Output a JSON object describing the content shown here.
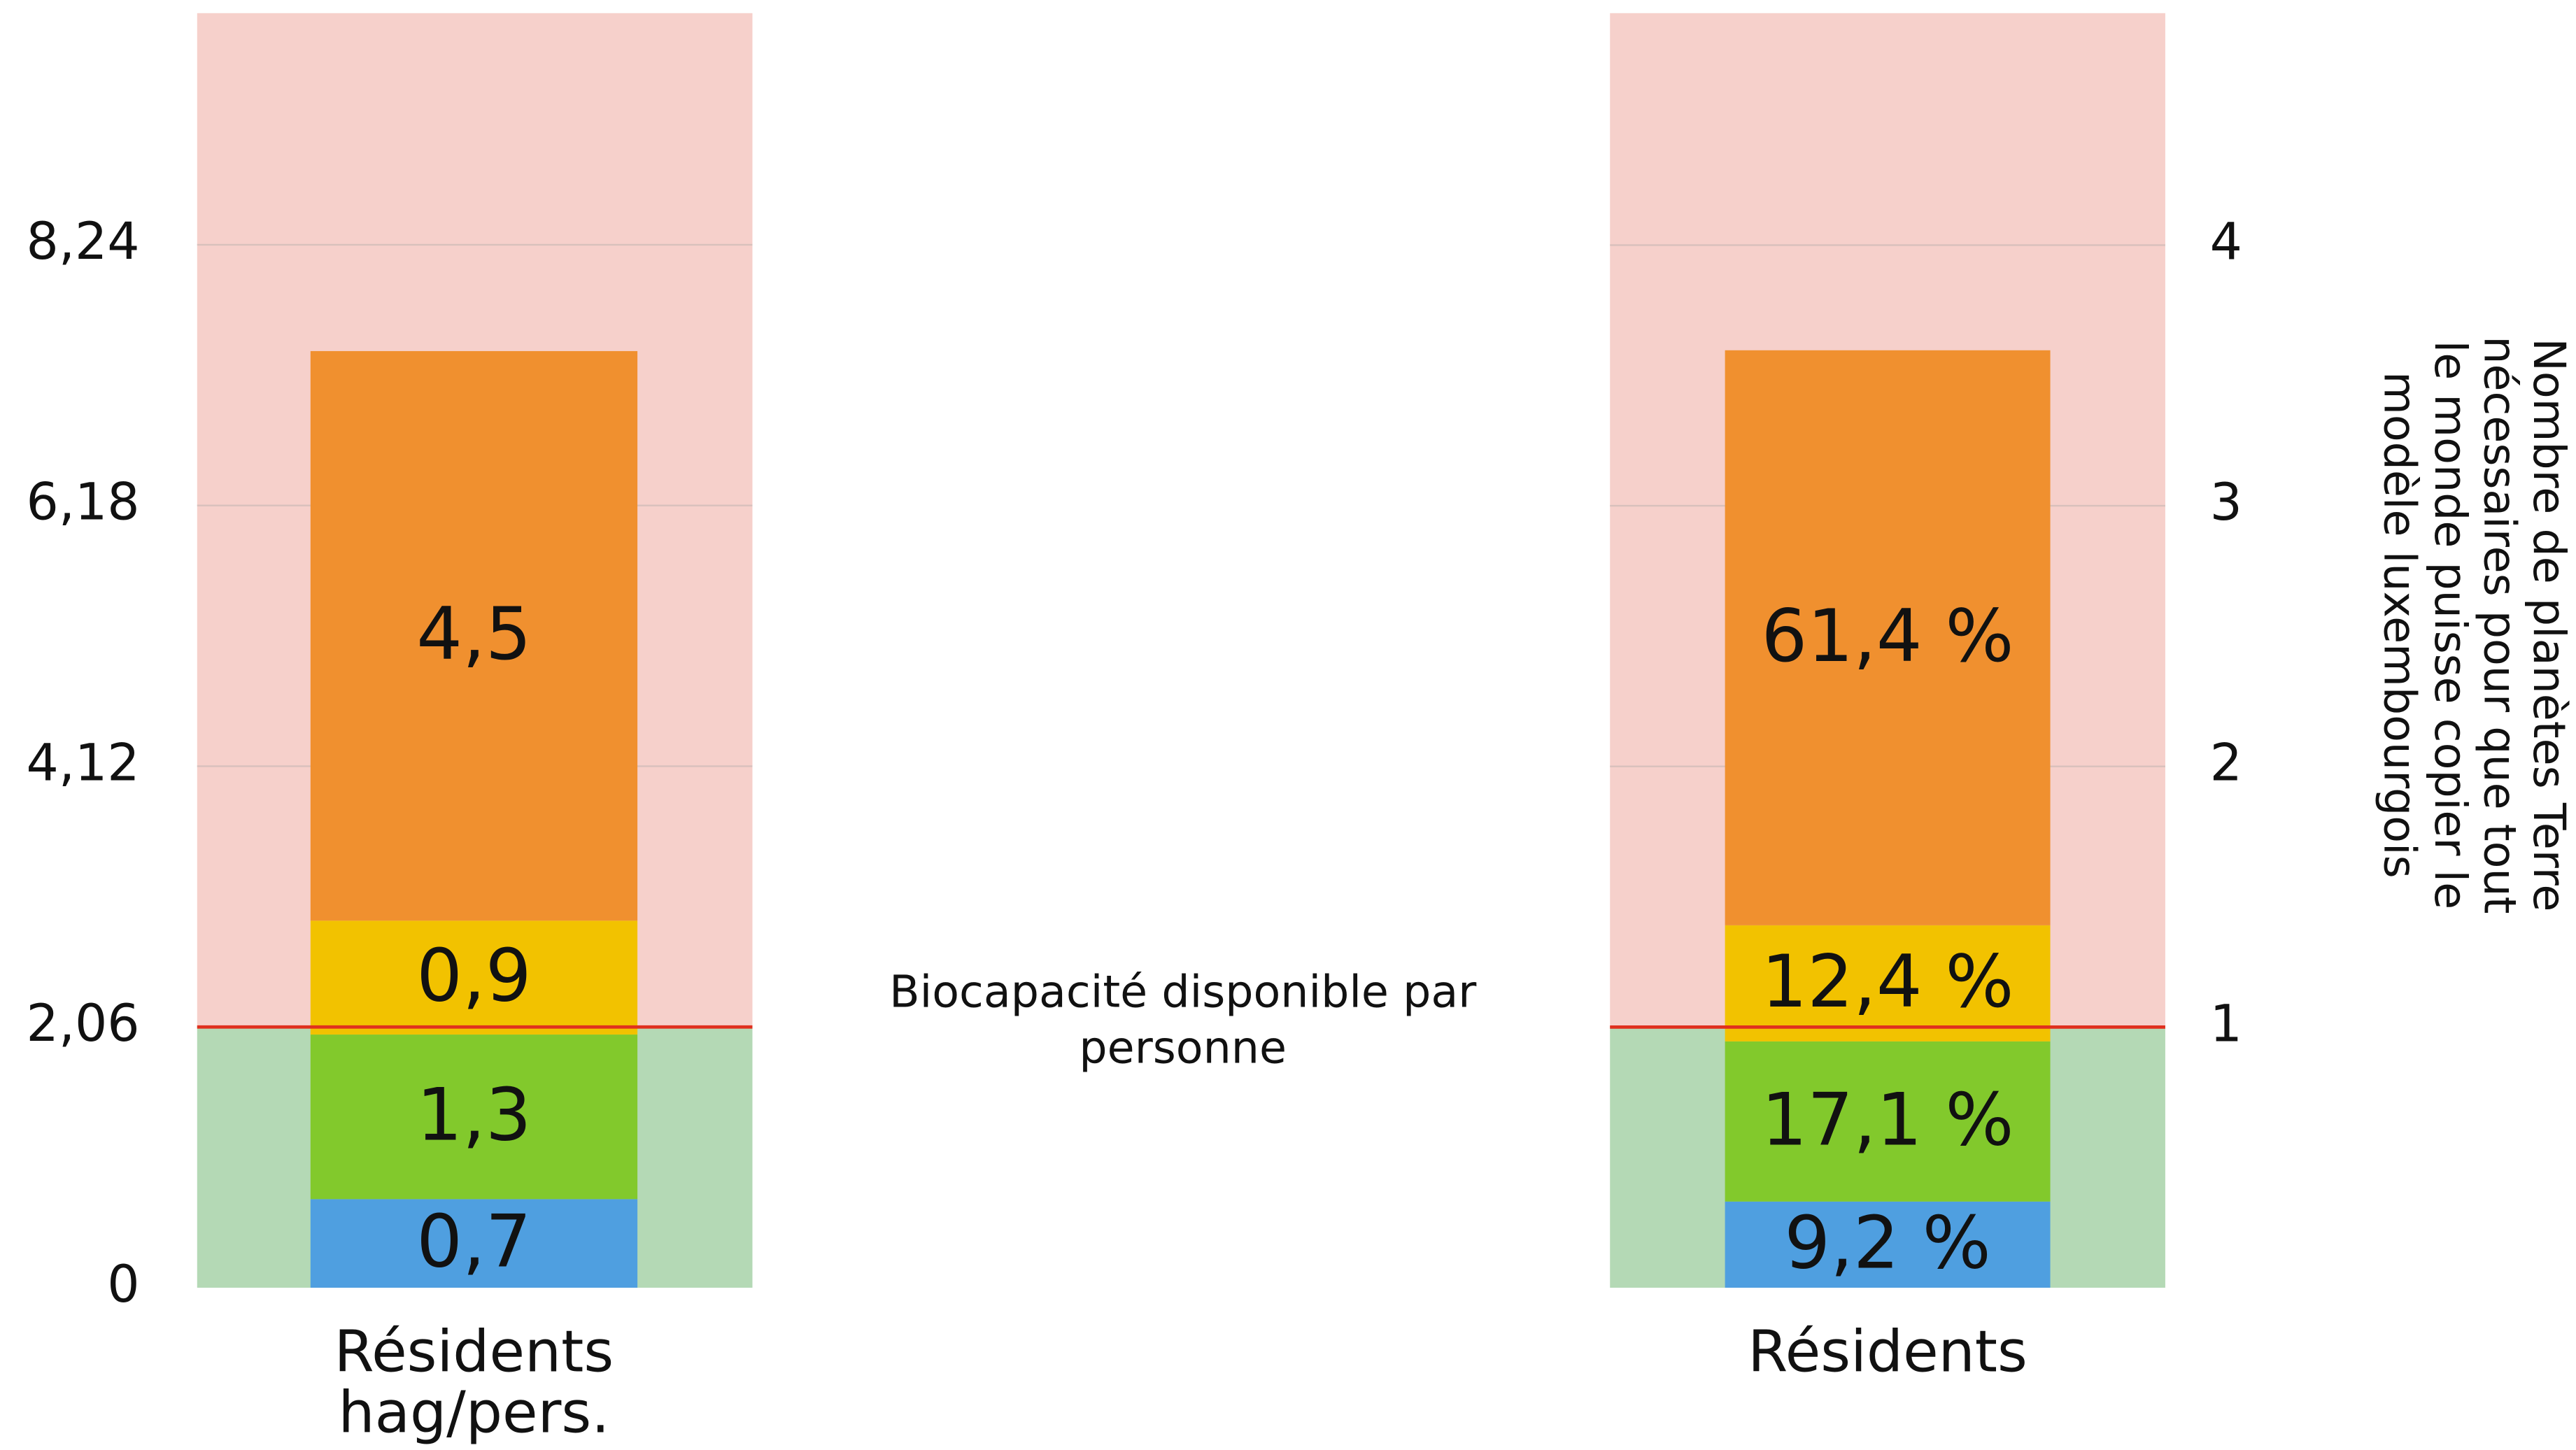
{
  "chart_data": [
    {
      "type": "bar",
      "stacked": true,
      "categories": [
        "Résidents hag/pers."
      ],
      "series": [
        {
          "color": "#4f9fe0",
          "values": [
            0.7
          ],
          "value_labels": [
            "0,7"
          ]
        },
        {
          "color": "#82c92c",
          "values": [
            1.3
          ],
          "value_labels": [
            "1,3"
          ]
        },
        {
          "color": "#f2c200",
          "values": [
            0.9
          ],
          "value_labels": [
            "0,9"
          ]
        },
        {
          "color": "#f0902f",
          "values": [
            4.5
          ],
          "value_labels": [
            "4,5"
          ]
        }
      ],
      "ylim": [
        0,
        10.07
      ],
      "yticks": [
        0,
        {
          "value": 2.06,
          "label": "2,06"
        },
        {
          "value": 4.12,
          "label": "4,12"
        },
        {
          "value": 6.18,
          "label": "6,18"
        },
        {
          "value": 8.24,
          "label": "8,24"
        }
      ],
      "grid": true,
      "threshold": 2.06,
      "threshold_color": "#e0301e",
      "above_color": "#f6d0cb",
      "below_color": "#b4d9b5"
    },
    {
      "type": "bar",
      "stacked": true,
      "categories": [
        "Résidents"
      ],
      "series": [
        {
          "color": "#4f9fe0",
          "values": [
            9.2
          ],
          "value_labels": [
            "9,2 %"
          ]
        },
        {
          "color": "#82c92c",
          "values": [
            17.1
          ],
          "value_labels": [
            "17,1 %"
          ]
        },
        {
          "color": "#f2c200",
          "values": [
            12.4
          ],
          "value_labels": [
            "12,4 %"
          ]
        },
        {
          "color": "#f0902f",
          "values": [
            61.4
          ],
          "value_labels": [
            "61,4 %"
          ]
        }
      ],
      "ylim": [
        0,
        136.1
      ],
      "y2lim": [
        0,
        4.89
      ],
      "y2ticks": [
        1,
        2,
        3,
        4
      ],
      "y2label": "Nombre de planètes Terre nécessaires pour que tout le monde puisse copier le modèle luxembourgois",
      "grid": true,
      "threshold": 1,
      "threshold_axis": "y2",
      "threshold_color": "#e0301e",
      "above_color": "#f6d0cb",
      "below_color": "#b4d9b5"
    }
  ],
  "annotation": "Biocapacité disponible par personne"
}
